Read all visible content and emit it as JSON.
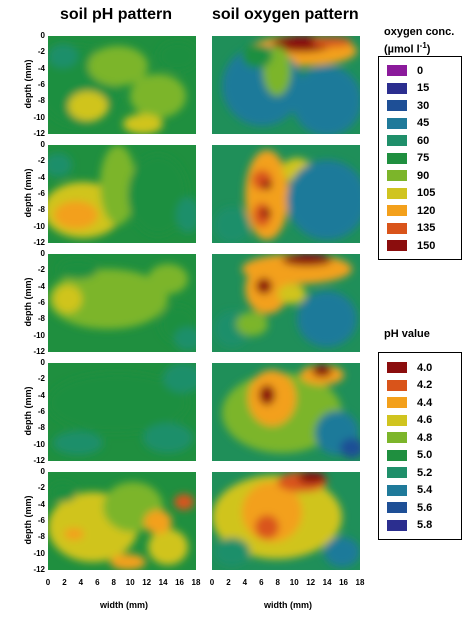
{
  "titles": {
    "left": "soil pH pattern",
    "right": "soil oxygen pattern"
  },
  "chart_data": {
    "type": "heatmap",
    "panels_rows": 5,
    "panels_cols": 2,
    "xlabel": "width (mm)",
    "ylabel": "depth (mm)",
    "x_ticks": [
      "0",
      "2",
      "4",
      "6",
      "8",
      "10",
      "12",
      "14",
      "16",
      "18"
    ],
    "y_ticks": [
      "0",
      "-2",
      "-4",
      "-6",
      "-8",
      "-10",
      "-12"
    ],
    "xlim": [
      0,
      18
    ],
    "ylim": [
      -12,
      0
    ],
    "oxygen_legend": {
      "title_line1": "oxygen conc.",
      "title_line2": "(µmol l",
      "title_sup": "-1",
      "title_end": ")",
      "entries": [
        {
          "label": "0",
          "color": "#8b1a9b"
        },
        {
          "label": "15",
          "color": "#2b2e8f"
        },
        {
          "label": "30",
          "color": "#1e4f96"
        },
        {
          "label": "45",
          "color": "#1f7a9a"
        },
        {
          "label": "60",
          "color": "#1f8f6a"
        },
        {
          "label": "75",
          "color": "#1f8f3f"
        },
        {
          "label": "90",
          "color": "#7cb52a"
        },
        {
          "label": "105",
          "color": "#d0c41f"
        },
        {
          "label": "120",
          "color": "#f3a01b"
        },
        {
          "label": "135",
          "color": "#d9541a"
        },
        {
          "label": "150",
          "color": "#8b0d0d"
        }
      ]
    },
    "ph_legend": {
      "title": "pH value",
      "entries": [
        {
          "label": "4.0",
          "color": "#8b0d0d"
        },
        {
          "label": "4.2",
          "color": "#d9541a"
        },
        {
          "label": "4.4",
          "color": "#f3a01b"
        },
        {
          "label": "4.6",
          "color": "#d0c41f"
        },
        {
          "label": "4.8",
          "color": "#7cb52a"
        },
        {
          "label": "5.0",
          "color": "#1f8f3f"
        },
        {
          "label": "5.2",
          "color": "#1f8f6a"
        },
        {
          "label": "5.4",
          "color": "#1f7a9a"
        },
        {
          "label": "5.6",
          "color": "#1e4f96"
        },
        {
          "label": "5.8",
          "color": "#2b2e8f"
        }
      ]
    }
  }
}
